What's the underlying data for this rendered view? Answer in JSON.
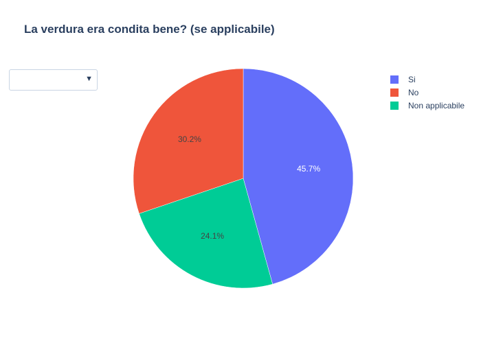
{
  "title": "La verdura era condita bene? (se applicabile)",
  "dropdown": {
    "value": ""
  },
  "chart_data": {
    "type": "pie",
    "title": "La verdura era condita bene? (se applicabile)",
    "labels": [
      "Si",
      "No",
      "Non applicabile"
    ],
    "values": [
      45.7,
      30.2,
      24.1
    ],
    "value_labels": [
      "45.7%",
      "30.2%",
      "24.1%"
    ],
    "colors": [
      "#636efa",
      "#ef553b",
      "#00cc96"
    ],
    "slice_order": [
      "Si",
      "Non applicabile",
      "No"
    ],
    "direction": "clockwise",
    "start": "top",
    "legend_position": "right"
  }
}
